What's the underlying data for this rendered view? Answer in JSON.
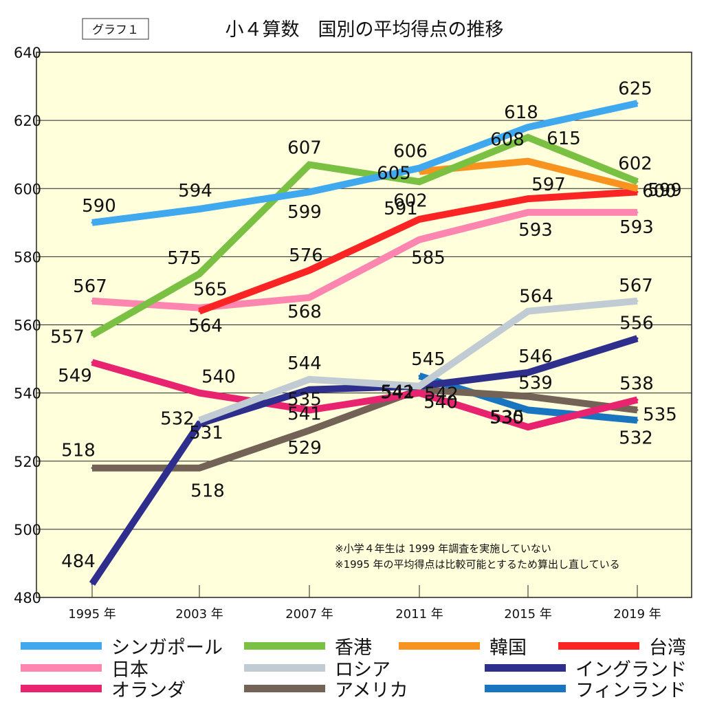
{
  "chart_data": {
    "type": "line",
    "tag": "グラフ１",
    "title": "小４算数　国別の平均得点の推移",
    "categories": [
      "1995 年",
      "2003 年",
      "2007 年",
      "2011 年",
      "2015 年",
      "2019 年"
    ],
    "ylim": [
      480,
      640
    ],
    "yticks": [
      "480",
      "500",
      "520",
      "540",
      "560",
      "580",
      "600",
      "620",
      "640"
    ],
    "notes": [
      "※小学４年生は 1999 年調査を実施していない",
      "※1995 年の平均得点は比較可能とするため算出し直している"
    ],
    "series": [
      {
        "name": "シンガポール",
        "color": "#3fa8ee",
        "values": [
          590,
          594,
          599,
          606,
          618,
          625
        ],
        "labels": [
          "590",
          "594",
          "599",
          "606",
          "618",
          "625"
        ]
      },
      {
        "name": "香港",
        "color": "#7ac143",
        "values": [
          557,
          575,
          607,
          602,
          615,
          602
        ],
        "labels": [
          "557",
          "575",
          "607",
          "602",
          "615",
          "602"
        ]
      },
      {
        "name": "韓国",
        "color": "#f7931e",
        "values": [
          null,
          null,
          null,
          605,
          608,
          600
        ],
        "labels": [
          "",
          "",
          "",
          "605",
          "608",
          "600"
        ]
      },
      {
        "name": "台湾",
        "color": "#fb2424",
        "values": [
          null,
          564,
          576,
          591,
          597,
          599
        ],
        "labels": [
          "",
          "564",
          "576",
          "591",
          "597",
          "599"
        ]
      },
      {
        "name": "日本",
        "color": "#fc86b0",
        "values": [
          567,
          565,
          568,
          585,
          593,
          593
        ],
        "labels": [
          "567",
          "565",
          "568",
          "585",
          "593",
          "593"
        ]
      },
      {
        "name": "ロシア",
        "color": "#c0cbd3",
        "values": [
          null,
          532,
          544,
          542,
          564,
          567
        ],
        "labels": [
          "",
          "532",
          "544",
          "542",
          "564",
          "567"
        ]
      },
      {
        "name": "イングランド",
        "color": "#2e2e8c",
        "values": [
          484,
          531,
          541,
          542,
          546,
          556
        ],
        "labels": [
          "484",
          "531",
          "541",
          "542",
          "546",
          "556"
        ]
      },
      {
        "name": "オランダ",
        "color": "#e8236f",
        "values": [
          549,
          540,
          535,
          540,
          530,
          538
        ],
        "labels": [
          "549",
          "540",
          "535",
          "540",
          "530",
          "538"
        ]
      },
      {
        "name": "アメリカ",
        "color": "#736357",
        "values": [
          518,
          518,
          529,
          541,
          539,
          535
        ],
        "labels": [
          "518",
          "518",
          "529",
          "541",
          "539",
          "535"
        ]
      },
      {
        "name": "フィンランド",
        "color": "#1a75c0",
        "values": [
          null,
          null,
          null,
          545,
          535,
          532
        ],
        "labels": [
          "",
          "",
          "",
          "545",
          "535",
          "532"
        ]
      }
    ]
  }
}
